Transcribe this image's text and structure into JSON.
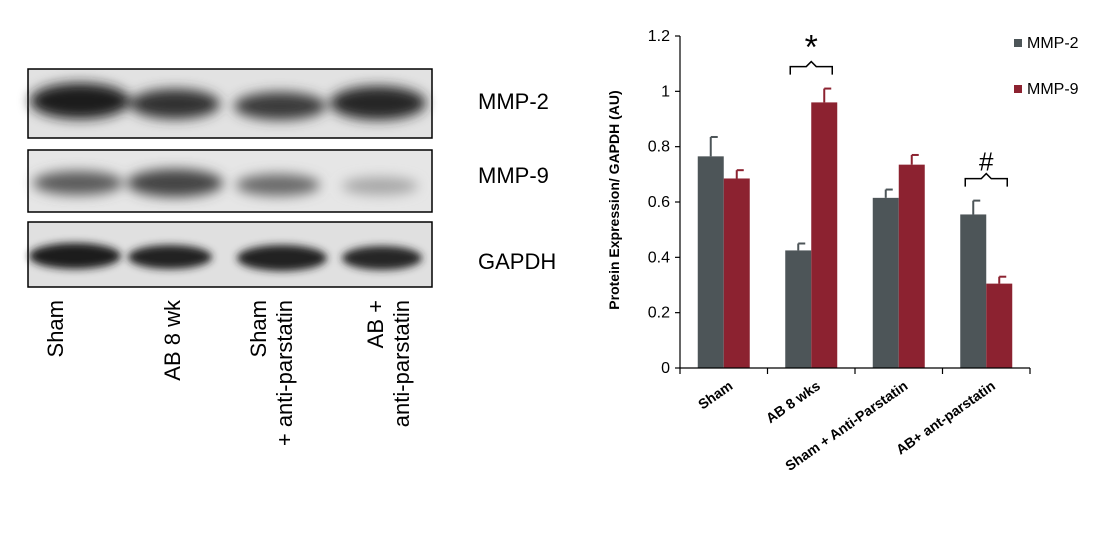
{
  "blot": {
    "bands": [
      "MMP-2",
      "MMP-9",
      "GAPDH"
    ],
    "lanes": [
      {
        "line1": "Sham",
        "line2": ""
      },
      {
        "line1": "AB 8 wk",
        "line2": ""
      },
      {
        "line1": "Sham",
        "line2": "+ anti-parstatin"
      },
      {
        "line1": "AB +",
        "line2": "anti-parstatin"
      }
    ]
  },
  "chart_data": {
    "type": "bar",
    "title": "",
    "xlabel": "",
    "ylabel": "Protein Expression/ GAPDH (AU)",
    "ylim": [
      0,
      1.2
    ],
    "yticks": [
      "0",
      "0.2",
      "0.4",
      "0.6",
      "0.8",
      "1",
      "1.2"
    ],
    "categories": [
      "Sham",
      "AB 8 wks",
      "Sham + Anti-Parstatin",
      "AB+ ant-parstatin"
    ],
    "series": [
      {
        "name": "MMP-2",
        "color": "#4d5558",
        "values": [
          0.765,
          0.425,
          0.615,
          0.555
        ],
        "errors": [
          0.07,
          0.025,
          0.03,
          0.05
        ]
      },
      {
        "name": "MMP-9",
        "color": "#8c2230",
        "values": [
          0.685,
          0.96,
          0.735,
          0.305
        ],
        "errors": [
          0.03,
          0.05,
          0.035,
          0.025
        ]
      }
    ],
    "legend_position": "top-right",
    "annotations": [
      {
        "category_index": 1,
        "symbol": "*"
      },
      {
        "category_index": 3,
        "symbol": "#"
      }
    ]
  }
}
